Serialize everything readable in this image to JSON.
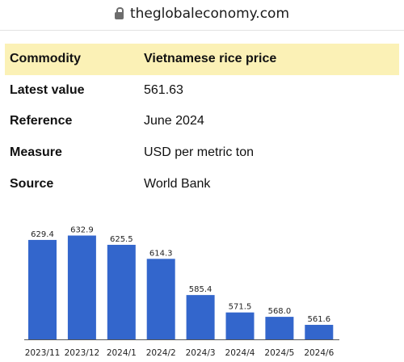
{
  "browser": {
    "url": "theglobaleconomy.com"
  },
  "table": {
    "rows": [
      {
        "label": "Commodity",
        "value": "Vietnamese rice price"
      },
      {
        "label": "Latest value",
        "value": "561.63"
      },
      {
        "label": "Reference",
        "value": "June 2024"
      },
      {
        "label": "Measure",
        "value": "USD per metric ton"
      },
      {
        "label": "Source",
        "value": "World Bank"
      }
    ]
  },
  "chart_data": {
    "type": "bar",
    "categories": [
      "2023/11",
      "2023/12",
      "2024/1",
      "2024/2",
      "2024/3",
      "2024/4",
      "2024/5",
      "2024/6"
    ],
    "values": [
      629.4,
      632.9,
      625.5,
      614.3,
      585.4,
      571.5,
      568.0,
      561.6
    ],
    "data_labels": [
      "629.4",
      "632.9",
      "625.5",
      "614.3",
      "585.4",
      "571.5",
      "568.0",
      "561.6"
    ],
    "ylim": [
      550,
      645
    ],
    "color": "#3366cc",
    "grid": false
  }
}
